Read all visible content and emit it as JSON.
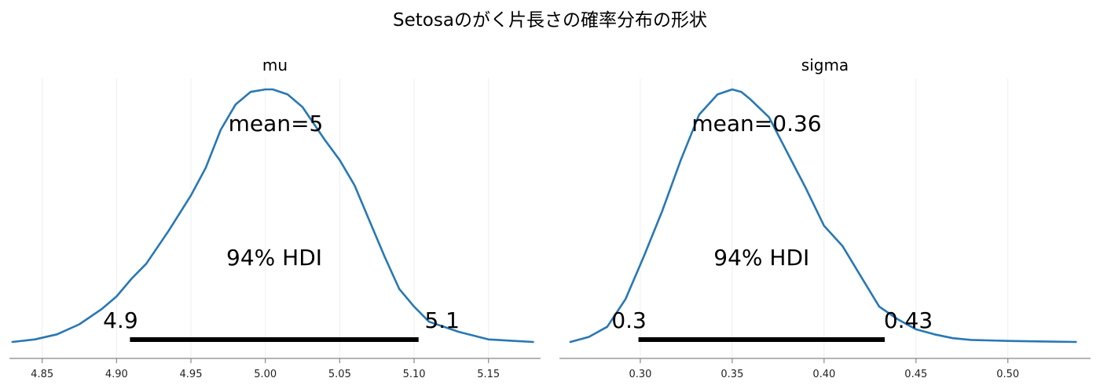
{
  "figure": {
    "title": "Setosaのがく片長さの確率分布の形状"
  },
  "colors": {
    "density": "#2878b5",
    "hdi_bar": "#000000",
    "axis": "#888888",
    "grid": "#eeeeee"
  },
  "chart_data": [
    {
      "type": "line",
      "title": "mu",
      "xlabel": "",
      "ylabel": "",
      "xlim": [
        4.828,
        5.185
      ],
      "ylim": [
        0,
        1
      ],
      "grid": true,
      "x_ticks": [
        "4.85",
        "4.90",
        "4.95",
        "5.00",
        "5.05",
        "5.10",
        "5.15"
      ],
      "series": [
        {
          "x": [
            4.83,
            4.845,
            4.86,
            4.875,
            4.89,
            4.9,
            4.91,
            4.92,
            4.935,
            4.95,
            4.96,
            4.97,
            4.98,
            4.99,
            5.0,
            5.005,
            5.015,
            5.025,
            5.04,
            5.05,
            5.06,
            5.07,
            5.08,
            5.09,
            5.1,
            5.11,
            5.13,
            5.15,
            5.165,
            5.18
          ],
          "y": [
            0.0,
            0.01,
            0.03,
            0.07,
            0.13,
            0.18,
            0.25,
            0.31,
            0.44,
            0.58,
            0.69,
            0.84,
            0.94,
            0.99,
            1.0,
            1.0,
            0.98,
            0.93,
            0.8,
            0.72,
            0.62,
            0.48,
            0.34,
            0.21,
            0.14,
            0.08,
            0.04,
            0.01,
            0.005,
            0.0
          ]
        }
      ],
      "mean_label": "mean=5",
      "hdi_label": "94% HDI",
      "hdi_prob": "94%",
      "hdi_low": 4.909,
      "hdi_high": 5.103,
      "hdi_low_label": "4.9",
      "hdi_high_label": "5.1"
    },
    {
      "type": "line",
      "title": "sigma",
      "xlabel": "",
      "ylabel": "",
      "xlim": [
        0.256,
        0.545
      ],
      "ylim": [
        0,
        1
      ],
      "grid": true,
      "x_ticks": [
        "0.30",
        "0.35",
        "0.40",
        "0.45",
        "0.50"
      ],
      "series": [
        {
          "x": [
            0.262,
            0.272,
            0.282,
            0.292,
            0.302,
            0.312,
            0.322,
            0.332,
            0.342,
            0.35,
            0.355,
            0.36,
            0.37,
            0.38,
            0.39,
            0.4,
            0.41,
            0.42,
            0.43,
            0.44,
            0.45,
            0.46,
            0.47,
            0.48,
            0.5,
            0.52,
            0.537
          ],
          "y": [
            0.0,
            0.02,
            0.06,
            0.17,
            0.34,
            0.52,
            0.72,
            0.9,
            0.98,
            1.0,
            0.99,
            0.96,
            0.89,
            0.75,
            0.61,
            0.46,
            0.38,
            0.26,
            0.14,
            0.09,
            0.05,
            0.03,
            0.015,
            0.008,
            0.004,
            0.002,
            0.0
          ]
        }
      ],
      "mean_label": "mean=0.36",
      "hdi_label": "94% HDI",
      "hdi_prob": "94%",
      "hdi_low": 0.299,
      "hdi_high": 0.433,
      "hdi_low_label": "0.3",
      "hdi_high_label": "0.43"
    }
  ]
}
